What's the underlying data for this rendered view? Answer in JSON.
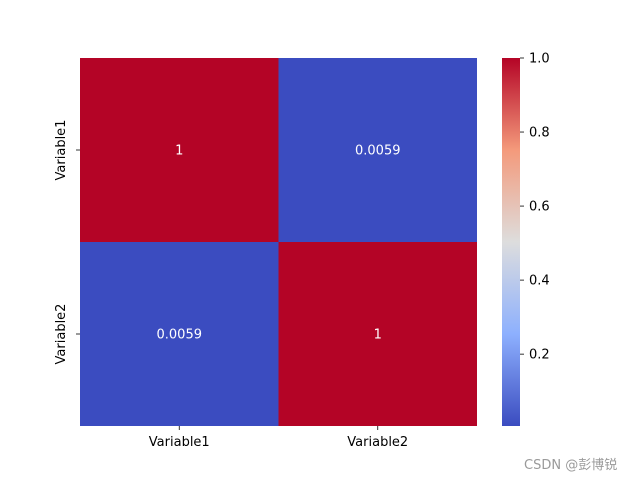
{
  "chart_data": {
    "type": "heatmap",
    "x_categories": [
      "Variable1",
      "Variable2"
    ],
    "y_categories": [
      "Variable1",
      "Variable2"
    ],
    "values": [
      [
        1,
        0.0059
      ],
      [
        0.0059,
        1
      ]
    ],
    "annotations": [
      [
        "1",
        "0.0059"
      ],
      [
        "0.0059",
        "1"
      ]
    ],
    "colormap": "coolwarm",
    "colors": {
      "low": "#3b4cc0",
      "mid": "#dddddd",
      "high": "#b40426",
      "annotation_text": "#ffffff"
    },
    "colorbar": {
      "min": 0.0059,
      "max": 1.0,
      "ticks": [
        0.2,
        0.4,
        0.6,
        0.8,
        1.0
      ],
      "tick_labels": [
        "0.2",
        "0.4",
        "0.6",
        "0.8",
        "1.0"
      ]
    },
    "title": "",
    "xlabel": "",
    "ylabel": ""
  },
  "watermark": "CSDN @彭博锐"
}
